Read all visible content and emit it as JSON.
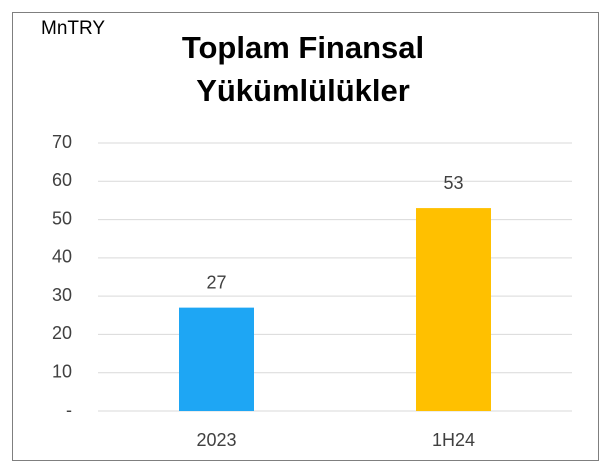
{
  "chart_data": {
    "type": "bar",
    "title": "Toplam Finansal Yükümlülükler",
    "unit_label": "MnTRY",
    "categories": [
      "2023",
      "1H24"
    ],
    "values": [
      27,
      53
    ],
    "colors": [
      "#1ea6f4",
      "#ffc000"
    ],
    "ylim": [
      0,
      70
    ],
    "yticks": [
      {
        "value": 0,
        "label": "-"
      },
      10,
      20,
      30,
      40,
      50,
      60,
      70
    ],
    "grid": true
  }
}
